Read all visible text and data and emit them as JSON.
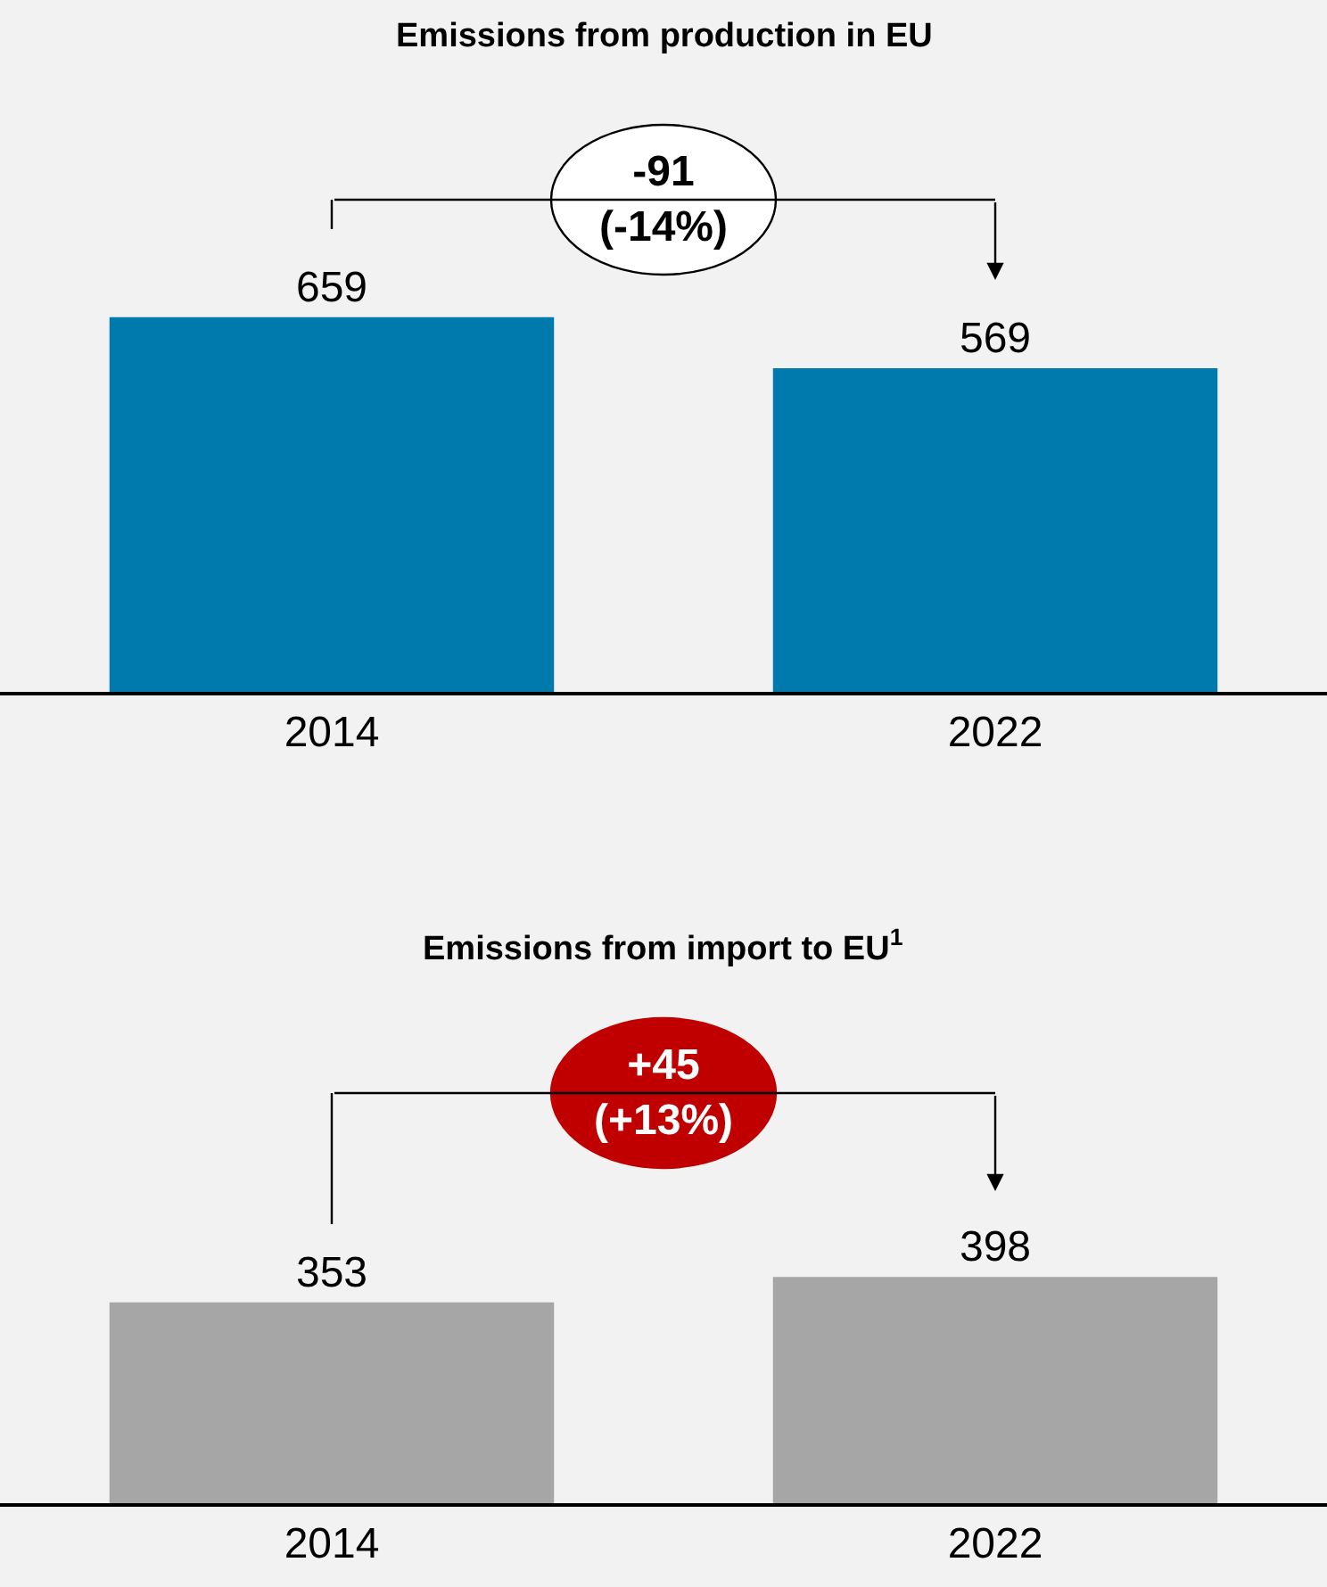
{
  "chart_data": [
    {
      "type": "bar",
      "title": "Emissions from production in EU",
      "categories": [
        "2014",
        "2022"
      ],
      "values": [
        659,
        569
      ],
      "color": "#007aad",
      "data_labels": true,
      "tick_labels": "x",
      "annotations": [
        "-91\n(-14%)"
      ]
    },
    {
      "type": "bar",
      "title": "Emissions from import to EU$^{1}$",
      "categories": [
        "2014",
        "2022"
      ],
      "values": [
        353,
        398
      ],
      "color": "#a6a6a6",
      "data_labels": true,
      "tick_labels": "x",
      "annotations": [
        "+45\n(+13%)"
      ]
    }
  ]
}
